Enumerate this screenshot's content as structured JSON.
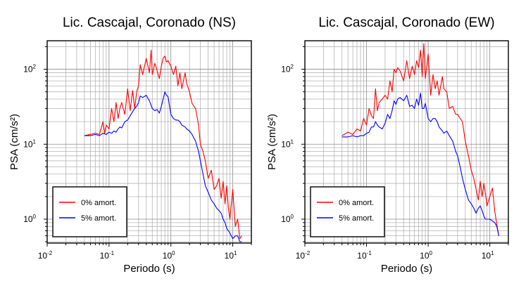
{
  "chart_data": [
    {
      "type": "line",
      "title": "Lic. Cascajal, Coronado (NS)",
      "xlabel": "Periodo (s)",
      "ylabel": "PSA (cm/s²)",
      "xscale": "log",
      "yscale": "log",
      "xlim": [
        0.01,
        20
      ],
      "ylim": [
        0.48,
        240
      ],
      "x_ticks": [
        0.01,
        0.1,
        1,
        10
      ],
      "y_ticks": [
        1,
        10,
        100
      ],
      "grid": true,
      "legend": "bottom-left",
      "series": [
        {
          "name": "0% amort.",
          "color": "#ff0000",
          "x": [
            0.04,
            0.05,
            0.06,
            0.07,
            0.08,
            0.085,
            0.09,
            0.1,
            0.11,
            0.12,
            0.13,
            0.14,
            0.15,
            0.16,
            0.18,
            0.2,
            0.22,
            0.24,
            0.26,
            0.28,
            0.3,
            0.32,
            0.35,
            0.4,
            0.45,
            0.48,
            0.5,
            0.55,
            0.6,
            0.65,
            0.7,
            0.75,
            0.8,
            0.85,
            0.9,
            1.0,
            1.1,
            1.2,
            1.3,
            1.4,
            1.5,
            1.7,
            1.8,
            2.0,
            2.2,
            2.5,
            2.8,
            3.0,
            3.3,
            3.6,
            4.0,
            4.5,
            5.0,
            5.5,
            6.0,
            6.5,
            7.0,
            7.5,
            8.0,
            8.5,
            9.0,
            10.0,
            11.0,
            12.0,
            13.0,
            14.0
          ],
          "y": [
            13,
            13.5,
            14,
            13.5,
            20,
            14,
            18,
            16,
            30,
            20,
            36,
            22,
            30,
            36,
            25,
            55,
            28,
            52,
            30,
            50,
            60,
            115,
            85,
            140,
            90,
            180,
            85,
            120,
            95,
            75,
            110,
            140,
            150,
            125,
            130,
            110,
            85,
            110,
            60,
            90,
            55,
            90,
            65,
            50,
            35,
            30,
            18,
            10,
            8,
            6,
            3.5,
            4.5,
            2.5,
            2.8,
            3.5,
            1.9,
            3.2,
            1.6,
            2.8,
            1.4,
            1.0,
            2.5,
            0.8,
            1.0,
            0.55,
            0.6
          ]
        },
        {
          "name": "5% amort.",
          "color": "#0000ff",
          "x": [
            0.04,
            0.05,
            0.06,
            0.07,
            0.08,
            0.09,
            0.1,
            0.11,
            0.12,
            0.13,
            0.14,
            0.15,
            0.16,
            0.18,
            0.2,
            0.22,
            0.24,
            0.26,
            0.28,
            0.3,
            0.32,
            0.35,
            0.4,
            0.45,
            0.5,
            0.55,
            0.6,
            0.65,
            0.7,
            0.75,
            0.8,
            0.85,
            0.9,
            1.0,
            1.1,
            1.2,
            1.3,
            1.4,
            1.5,
            1.7,
            1.8,
            2.0,
            2.2,
            2.5,
            2.8,
            3.0,
            3.3,
            3.6,
            4.0,
            4.5,
            5.0,
            5.5,
            6.0,
            6.5,
            7.0,
            7.5,
            8.0,
            8.5,
            9.0,
            10.0,
            11.0,
            12.0,
            13.0,
            14.0
          ],
          "y": [
            13,
            13,
            13.5,
            13,
            14,
            13.5,
            14.5,
            14,
            15,
            14.5,
            16,
            17,
            16.5,
            20,
            21,
            24,
            27,
            30,
            32,
            36,
            44,
            42,
            45,
            38,
            30,
            28,
            29,
            26,
            32,
            40,
            50,
            45,
            43,
            25,
            22,
            21,
            21,
            20,
            18,
            17,
            16,
            15,
            13.5,
            11,
            8,
            6,
            4,
            2.8,
            2.3,
            1.8,
            1.6,
            1.4,
            1.3,
            1.2,
            1.0,
            0.9,
            0.75,
            0.7,
            0.65,
            0.55,
            0.6,
            0.6,
            0.5,
            0.5
          ]
        }
      ]
    },
    {
      "type": "line",
      "title": "Lic. Cascajal, Coronado (EW)",
      "xlabel": "Periodo (s)",
      "ylabel": "PSA (cm/s²)",
      "xscale": "log",
      "yscale": "log",
      "xlim": [
        0.01,
        20
      ],
      "ylim": [
        0.48,
        240
      ],
      "x_ticks": [
        0.01,
        0.1,
        1,
        10
      ],
      "y_ticks": [
        1,
        10,
        100
      ],
      "grid": true,
      "legend": "bottom-left",
      "series": [
        {
          "name": "0% amort.",
          "color": "#ff0000",
          "x": [
            0.04,
            0.05,
            0.06,
            0.07,
            0.08,
            0.09,
            0.1,
            0.11,
            0.12,
            0.13,
            0.14,
            0.15,
            0.16,
            0.18,
            0.2,
            0.22,
            0.24,
            0.26,
            0.28,
            0.3,
            0.32,
            0.35,
            0.4,
            0.45,
            0.5,
            0.55,
            0.6,
            0.65,
            0.7,
            0.75,
            0.8,
            0.85,
            0.9,
            1.0,
            1.1,
            1.2,
            1.3,
            1.4,
            1.5,
            1.7,
            1.8,
            2.0,
            2.2,
            2.5,
            2.8,
            3.0,
            3.3,
            3.6,
            4.0,
            4.5,
            5.0,
            5.5,
            6.0,
            6.5,
            7.0,
            7.5,
            8.0,
            8.5,
            9.0,
            10.0,
            11.0,
            12.0,
            13.0,
            14.0
          ],
          "y": [
            13,
            14.5,
            13.5,
            16,
            15,
            22,
            18,
            30,
            24,
            22,
            55,
            28,
            36,
            40,
            45,
            40,
            70,
            50,
            100,
            90,
            105,
            95,
            70,
            130,
            75,
            110,
            85,
            130,
            105,
            180,
            80,
            220,
            75,
            160,
            45,
            85,
            55,
            70,
            45,
            80,
            55,
            50,
            30,
            32,
            25,
            25,
            22,
            20,
            11,
            7,
            4.5,
            3.5,
            2.5,
            1.8,
            3.2,
            2.0,
            3.0,
            2.2,
            1.5,
            2.0,
            2.6,
            1.3,
            0.85,
            0.6
          ]
        },
        {
          "name": "5% amort.",
          "color": "#0000ff",
          "x": [
            0.04,
            0.05,
            0.06,
            0.07,
            0.08,
            0.09,
            0.1,
            0.11,
            0.12,
            0.13,
            0.14,
            0.15,
            0.16,
            0.18,
            0.2,
            0.22,
            0.24,
            0.26,
            0.28,
            0.3,
            0.32,
            0.35,
            0.4,
            0.45,
            0.5,
            0.55,
            0.6,
            0.65,
            0.7,
            0.75,
            0.8,
            0.85,
            0.9,
            1.0,
            1.1,
            1.2,
            1.3,
            1.4,
            1.5,
            1.7,
            1.8,
            2.0,
            2.2,
            2.5,
            2.8,
            3.0,
            3.3,
            3.6,
            4.0,
            4.5,
            5.0,
            5.5,
            6.0,
            6.5,
            7.0,
            7.5,
            8.0,
            8.5,
            9.0,
            10.0,
            11.0,
            12.0,
            13.0,
            14.0
          ],
          "y": [
            12.5,
            12.5,
            13,
            12.5,
            13,
            13,
            14,
            14.5,
            17,
            17,
            20,
            18,
            17,
            16,
            19,
            25,
            22,
            28,
            38,
            34,
            40,
            42,
            38,
            45,
            32,
            33,
            30,
            40,
            33,
            48,
            30,
            30,
            35,
            22,
            20,
            22,
            22,
            20,
            17,
            15,
            14,
            15,
            13,
            11,
            8,
            7,
            5,
            3.5,
            2.5,
            1.8,
            1.6,
            1.4,
            1.2,
            1.4,
            1.5,
            1.3,
            1.1,
            1.0,
            1.0,
            1.0,
            0.95,
            0.9,
            0.8,
            0.6
          ]
        }
      ]
    }
  ]
}
